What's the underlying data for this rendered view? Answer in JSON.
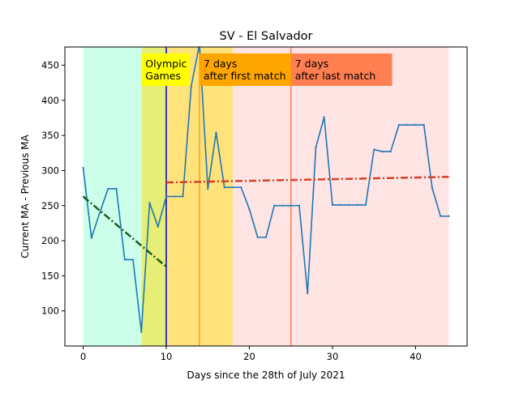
{
  "chart_data": {
    "type": "line",
    "title": "SV - El Salvador",
    "xlabel": "Days since the 28th of July 2021",
    "ylabel": "Current MA - Previous MA",
    "xlim": [
      -2.2,
      46.2
    ],
    "ylim": [
      50,
      476
    ],
    "xticks": [
      0,
      10,
      20,
      30,
      40
    ],
    "yticks": [
      100,
      150,
      200,
      250,
      300,
      350,
      400,
      450
    ],
    "grid": false,
    "legend": "none",
    "shaded_regions": [
      {
        "x0": 0,
        "x1": 7,
        "color": "#ccffe9"
      },
      {
        "x0": 7,
        "x1": 10,
        "color": "#e6ee77"
      },
      {
        "x0": 10,
        "x1": 18,
        "color": "#ffe27a"
      },
      {
        "x0": 18,
        "x1": 44,
        "color": "#ffe4e4"
      }
    ],
    "vertical_lines": [
      {
        "x": 10,
        "color": "#0000cc"
      },
      {
        "x": 14,
        "color": "#f5a31f"
      },
      {
        "x": 25,
        "color": "#ff7f50"
      }
    ],
    "annotations": [
      {
        "lines": [
          "Olympic",
          "Games"
        ],
        "x": 7,
        "color": "#ffff00"
      },
      {
        "lines": [
          "7 days",
          "after first match"
        ],
        "x": 14,
        "color": "#ffa500"
      },
      {
        "lines": [
          "7 days",
          "after last match"
        ],
        "x": 25,
        "color": "#ff7f50"
      }
    ],
    "series": [
      {
        "color": "#1f77b4",
        "x": [
          0,
          1,
          2,
          3,
          4,
          5,
          6,
          7,
          8,
          9,
          10,
          11,
          12,
          13,
          14,
          15,
          16,
          17,
          18,
          19,
          20,
          21,
          22,
          23,
          24,
          25,
          26,
          27,
          28,
          29,
          30,
          31,
          32,
          33,
          34,
          35,
          36,
          37,
          38,
          39,
          40,
          41,
          42,
          43,
          44
        ],
        "values": [
          304,
          204,
          240,
          274,
          274,
          173,
          173,
          70,
          254,
          220,
          263,
          263,
          263,
          420,
          480,
          274,
          354,
          276,
          276,
          276,
          245,
          205,
          205,
          250,
          250,
          250,
          250,
          125,
          333,
          376,
          251,
          251,
          251,
          251,
          251,
          330,
          327,
          327,
          365,
          365,
          365,
          365,
          275,
          235,
          235
        ]
      }
    ],
    "trend_lines": [
      {
        "x": [
          0,
          10
        ],
        "values": [
          263,
          163
        ],
        "color": "#1a5e20"
      },
      {
        "x": [
          10,
          44
        ],
        "values": [
          283,
          291
        ],
        "color": "#d6402a"
      }
    ]
  }
}
